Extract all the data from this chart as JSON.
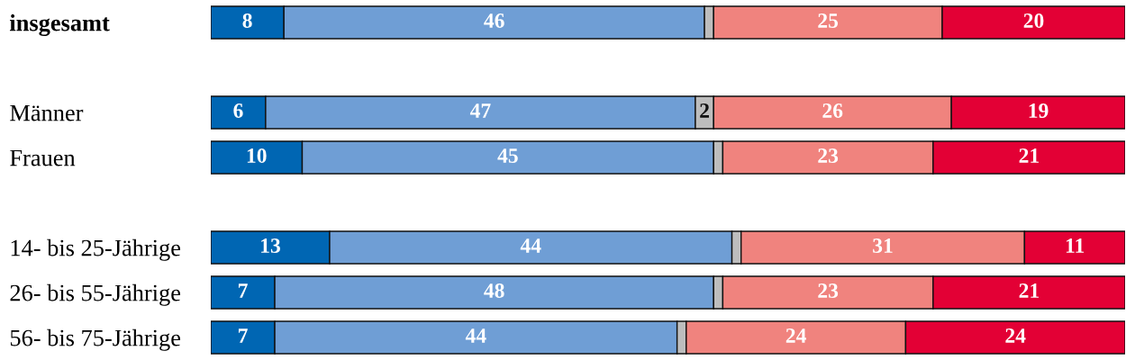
{
  "chart_data": {
    "type": "bar",
    "orientation": "horizontal",
    "stacked": true,
    "categories": [
      "insgesamt",
      null,
      "Männer",
      "Frauen",
      null,
      "14- bis 25-Jährige",
      "26- bis 55-Jährige",
      "56- bis 75-Jährige"
    ],
    "series": [
      {
        "color": "#0066b3",
        "values": [
          8,
          null,
          6,
          10,
          null,
          13,
          7,
          7
        ],
        "value_labels": [
          "8",
          null,
          "6",
          "10",
          null,
          "13",
          "7",
          "7"
        ]
      },
      {
        "color": "#6f9ed5",
        "values": [
          46,
          null,
          47,
          45,
          null,
          44,
          48,
          44
        ],
        "value_labels": [
          "46",
          null,
          "47",
          "45",
          null,
          "44",
          "48",
          "44"
        ]
      },
      {
        "color": "#bdbdbd",
        "values": [
          1,
          null,
          2,
          1,
          null,
          1,
          1,
          1
        ],
        "value_labels": [
          null,
          null,
          "2",
          null,
          null,
          null,
          null,
          null
        ]
      },
      {
        "color": "#f0837e",
        "values": [
          25,
          null,
          26,
          23,
          null,
          31,
          23,
          24
        ],
        "value_labels": [
          "25",
          null,
          "26",
          "23",
          null,
          "31",
          "23",
          "24"
        ]
      },
      {
        "color": "#e30035",
        "values": [
          20,
          null,
          19,
          21,
          null,
          11,
          21,
          24
        ],
        "value_labels": [
          "20",
          null,
          "19",
          "21",
          null,
          "11",
          "21",
          "24"
        ]
      }
    ]
  }
}
